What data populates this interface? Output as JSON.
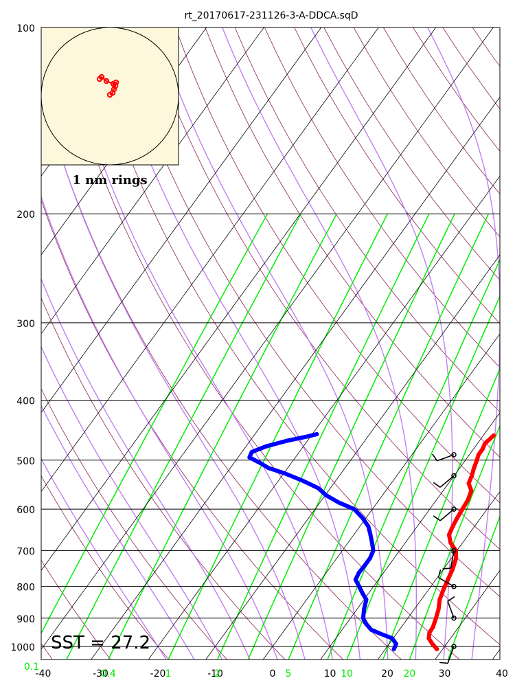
{
  "chart_data": {
    "type": "skew-t",
    "title": "rt_20170617-231126-3-A-DDCA.sqD",
    "sst_label": "SST = 27.2",
    "hodograph_label": "1 nm rings",
    "pressure_ticks": [
      100,
      200,
      300,
      400,
      500,
      600,
      700,
      800,
      900,
      1000
    ],
    "pressure_labels": [
      "100",
      "200",
      "300",
      "400",
      "500",
      "600",
      "700",
      "800",
      "900",
      "1000"
    ],
    "temperature_ticks": [
      -40,
      -30,
      -20,
      -10,
      0,
      10,
      20,
      30,
      40
    ],
    "temperature_labels": [
      "-40",
      "-30",
      "-20",
      "-10",
      "0",
      "10",
      "20",
      "30",
      "40"
    ],
    "mixing_ratio_ticks": [
      0.1,
      0.4,
      1,
      2,
      5,
      10,
      20
    ],
    "mixing_ratio_labels": [
      "0.1",
      "0.4",
      "1",
      "2",
      "5",
      "10",
      "20"
    ],
    "xlim": [
      -40,
      40
    ],
    "ylim": [
      1050,
      100
    ],
    "grid": true,
    "colors": {
      "temperature": "#ff0000",
      "dewpoint": "#0000ff",
      "mixing_ratio": "#00ee00",
      "moist_adiabat": "#c080f0",
      "dry_adiabat": "#8b2252",
      "isotherm": "#000000",
      "hodograph_bg": "#fdf8dc"
    },
    "temperature_profile": [
      {
        "p": 1010,
        "t": 29.0
      },
      {
        "p": 990,
        "t": 27.5
      },
      {
        "p": 970,
        "t": 26.2
      },
      {
        "p": 950,
        "t": 25.6
      },
      {
        "p": 930,
        "t": 25.5
      },
      {
        "p": 900,
        "t": 24.9
      },
      {
        "p": 870,
        "t": 24.2
      },
      {
        "p": 840,
        "t": 23.2
      },
      {
        "p": 810,
        "t": 22.6
      },
      {
        "p": 780,
        "t": 22.1
      },
      {
        "p": 750,
        "t": 21.6
      },
      {
        "p": 720,
        "t": 20.8
      },
      {
        "p": 700,
        "t": 19.8
      },
      {
        "p": 680,
        "t": 17.9
      },
      {
        "p": 660,
        "t": 16.6
      },
      {
        "p": 640,
        "t": 16.2
      },
      {
        "p": 620,
        "t": 15.9
      },
      {
        "p": 600,
        "t": 15.7
      },
      {
        "p": 580,
        "t": 15.5
      },
      {
        "p": 560,
        "t": 14.9
      },
      {
        "p": 545,
        "t": 13.5
      },
      {
        "p": 530,
        "t": 13.1
      },
      {
        "p": 515,
        "t": 12.5
      },
      {
        "p": 500,
        "t": 12.0
      },
      {
        "p": 490,
        "t": 11.6
      },
      {
        "p": 480,
        "t": 11.6
      },
      {
        "p": 470,
        "t": 11.3
      },
      {
        "p": 462,
        "t": 11.6
      },
      {
        "p": 456,
        "t": 11.8
      }
    ],
    "dewpoint_profile": [
      {
        "p": 1010,
        "t": 21.5
      },
      {
        "p": 990,
        "t": 21.2
      },
      {
        "p": 970,
        "t": 19.8
      },
      {
        "p": 955,
        "t": 17.4
      },
      {
        "p": 940,
        "t": 15.1
      },
      {
        "p": 920,
        "t": 13.5
      },
      {
        "p": 900,
        "t": 12.2
      },
      {
        "p": 870,
        "t": 11.2
      },
      {
        "p": 840,
        "t": 10.4
      },
      {
        "p": 820,
        "t": 8.9
      },
      {
        "p": 800,
        "t": 7.5
      },
      {
        "p": 780,
        "t": 6.0
      },
      {
        "p": 760,
        "t": 5.7
      },
      {
        "p": 740,
        "t": 5.8
      },
      {
        "p": 720,
        "t": 5.8
      },
      {
        "p": 700,
        "t": 5.4
      },
      {
        "p": 680,
        "t": 4.2
      },
      {
        "p": 660,
        "t": 2.9
      },
      {
        "p": 640,
        "t": 1.5
      },
      {
        "p": 620,
        "t": -0.6
      },
      {
        "p": 600,
        "t": -3.2
      },
      {
        "p": 585,
        "t": -6.8
      },
      {
        "p": 570,
        "t": -9.8
      },
      {
        "p": 555,
        "t": -12.1
      },
      {
        "p": 540,
        "t": -15.7
      },
      {
        "p": 525,
        "t": -19.9
      },
      {
        "p": 515,
        "t": -23.3
      },
      {
        "p": 505,
        "t": -25.5
      },
      {
        "p": 495,
        "t": -28.0
      },
      {
        "p": 485,
        "t": -28.3
      },
      {
        "p": 475,
        "t": -26.5
      },
      {
        "p": 465,
        "t": -23.5
      },
      {
        "p": 458,
        "t": -20.6
      },
      {
        "p": 454,
        "t": -19.2
      }
    ],
    "wind_barbs": [
      {
        "p": 1000,
        "direction": 200,
        "speed": 10
      },
      {
        "p": 900,
        "direction": 340,
        "speed": 10
      },
      {
        "p": 800,
        "direction": 300,
        "speed": 10
      },
      {
        "p": 700,
        "direction": 190,
        "speed": 10
      },
      {
        "p": 600,
        "direction": 230,
        "speed": 10
      },
      {
        "p": 530,
        "direction": 230,
        "speed": 10
      },
      {
        "p": 490,
        "direction": 250,
        "speed": 10
      }
    ],
    "hodograph": {
      "ring_spacing_nm": 1,
      "points": [
        {
          "u": -0.15,
          "v": 0.25
        },
        {
          "u": -0.12,
          "v": 0.28
        },
        {
          "u": -0.05,
          "v": 0.22
        },
        {
          "u": 0.05,
          "v": 0.18
        },
        {
          "u": 0.09,
          "v": 0.2
        },
        {
          "u": 0.08,
          "v": 0.15
        },
        {
          "u": 0.06,
          "v": 0.1
        },
        {
          "u": 0.04,
          "v": 0.05
        },
        {
          "u": 0.0,
          "v": 0.02
        }
      ]
    }
  }
}
